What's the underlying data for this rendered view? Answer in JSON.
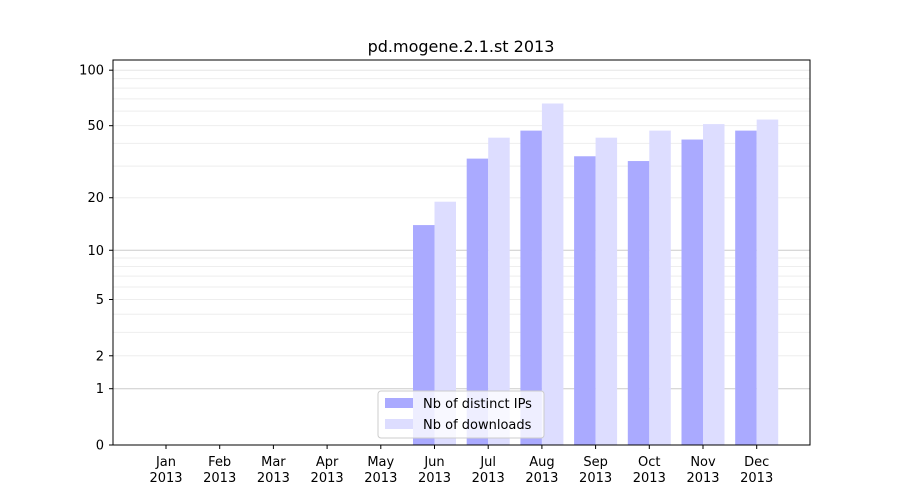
{
  "chart_data": {
    "type": "bar",
    "title": "pd.mogene.2.1.st 2013",
    "xlabel": "",
    "ylabel": "",
    "yscale": "symlog",
    "ylim": [
      0,
      110
    ],
    "y_ticks": [
      0,
      1,
      2,
      5,
      10,
      20,
      50,
      100
    ],
    "categories": [
      "Jan\n2013",
      "Feb\n2013",
      "Mar\n2013",
      "Apr\n2013",
      "May\n2013",
      "Jun\n2013",
      "Jul\n2013",
      "Aug\n2013",
      "Sep\n2013",
      "Oct\n2013",
      "Nov\n2013",
      "Dec\n2013"
    ],
    "series": [
      {
        "name": "Nb of distinct IPs",
        "color": "#aaaaff",
        "values": [
          0,
          0,
          0,
          0,
          0,
          14,
          33,
          47,
          34,
          32,
          42,
          47
        ]
      },
      {
        "name": "Nb of downloads",
        "color": "#ddddff",
        "values": [
          0,
          0,
          0,
          0,
          0,
          19,
          43,
          66,
          43,
          47,
          51,
          54
        ]
      }
    ],
    "legend": "lower-center",
    "grid": true
  }
}
